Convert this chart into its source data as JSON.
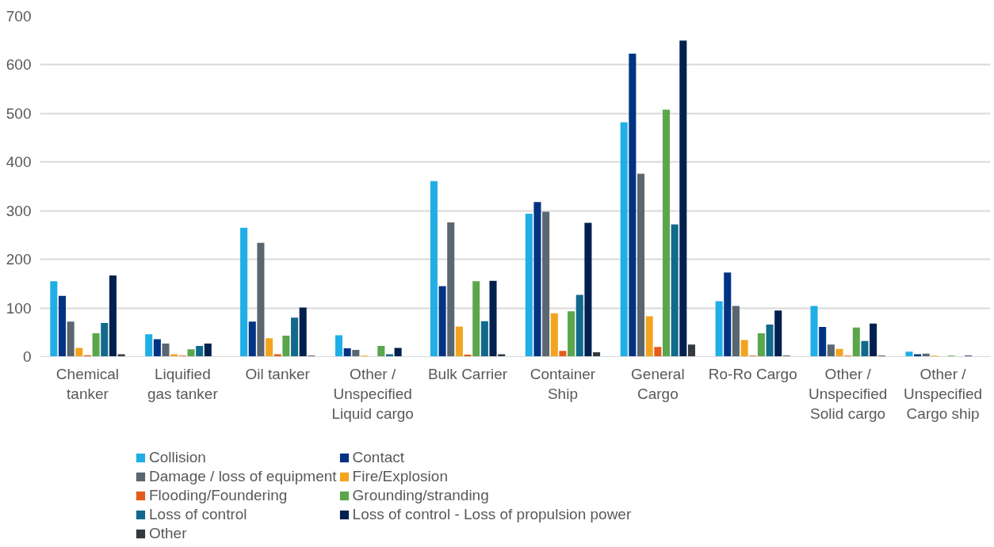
{
  "chart_data": {
    "type": "bar",
    "categories": [
      "Chemical tanker",
      "Liquified gas tanker",
      "Oil tanker",
      "Other / Unspecified Liquid cargo",
      "Bulk Carrier",
      "Container Ship",
      "General Cargo",
      "Ro-Ro Cargo",
      "Other / Unspecified Solid cargo",
      "Other / Unspecified Cargo ship"
    ],
    "series": [
      {
        "name": "Collision",
        "color": "#1fafe6",
        "values": [
          155,
          46,
          265,
          44,
          361,
          294,
          482,
          114,
          104,
          10
        ]
      },
      {
        "name": "Contact",
        "color": "#003383",
        "values": [
          125,
          36,
          72,
          17,
          145,
          318,
          623,
          173,
          61,
          5
        ]
      },
      {
        "name": "Damage / loss of equipment",
        "color": "#5a6670",
        "values": [
          72,
          27,
          234,
          14,
          276,
          298,
          376,
          104,
          25,
          6
        ]
      },
      {
        "name": "Fire/Explosion",
        "color": "#f3a41e",
        "values": [
          18,
          5,
          38,
          2,
          62,
          89,
          83,
          34,
          16,
          2
        ]
      },
      {
        "name": "Flooding/Foundering",
        "color": "#e35c1c",
        "values": [
          3,
          2,
          5,
          0,
          4,
          12,
          20,
          2,
          2,
          0
        ]
      },
      {
        "name": "Grounding/stranding",
        "color": "#5ba64b",
        "values": [
          48,
          15,
          43,
          22,
          155,
          93,
          508,
          48,
          60,
          2
        ]
      },
      {
        "name": "Loss of control",
        "color": "#116a8c",
        "values": [
          69,
          22,
          80,
          5,
          73,
          127,
          272,
          66,
          32,
          0
        ]
      },
      {
        "name": "Loss of control - Loss of propulsion power",
        "color": "#00204f",
        "values": [
          167,
          27,
          101,
          18,
          156,
          275,
          650,
          95,
          68,
          2
        ]
      },
      {
        "name": "Other",
        "color": "#343a3f",
        "values": [
          5,
          0,
          2,
          0,
          5,
          9,
          25,
          2,
          2,
          0
        ]
      }
    ],
    "ylim": [
      0,
      700
    ],
    "yticks": [
      0,
      100,
      200,
      300,
      400,
      500,
      600,
      700
    ],
    "grid": "y",
    "legend": "bottom"
  }
}
